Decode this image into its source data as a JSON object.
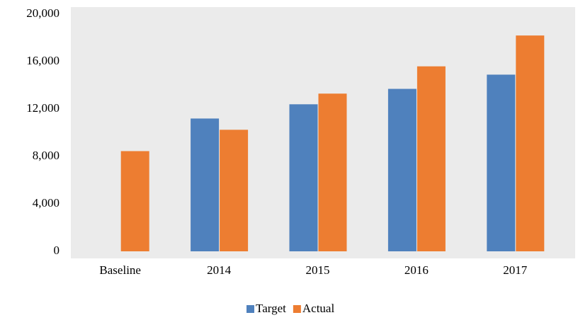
{
  "chart_data": {
    "type": "bar",
    "categories": [
      "Baseline",
      "2014",
      "2015",
      "2016",
      "2017"
    ],
    "series": [
      {
        "name": "Target",
        "color": "#4f81bd",
        "values": [
          null,
          11200,
          12400,
          13700,
          14900
        ]
      },
      {
        "name": "Actual",
        "color": "#ed7d31",
        "values": [
          8450,
          10250,
          13300,
          15600,
          18200
        ]
      }
    ],
    "ylim": [
      0,
      20000
    ],
    "yticks": [
      0,
      {
        "value": 4000,
        "label": "4,000"
      },
      {
        "value": 8000,
        "label": "8,000"
      },
      {
        "value": 12000,
        "label": "12,000"
      },
      {
        "value": 16000,
        "label": "16,000"
      },
      {
        "value": 20000,
        "label": "20,000"
      }
    ],
    "grid": false,
    "legend": "bottom"
  }
}
